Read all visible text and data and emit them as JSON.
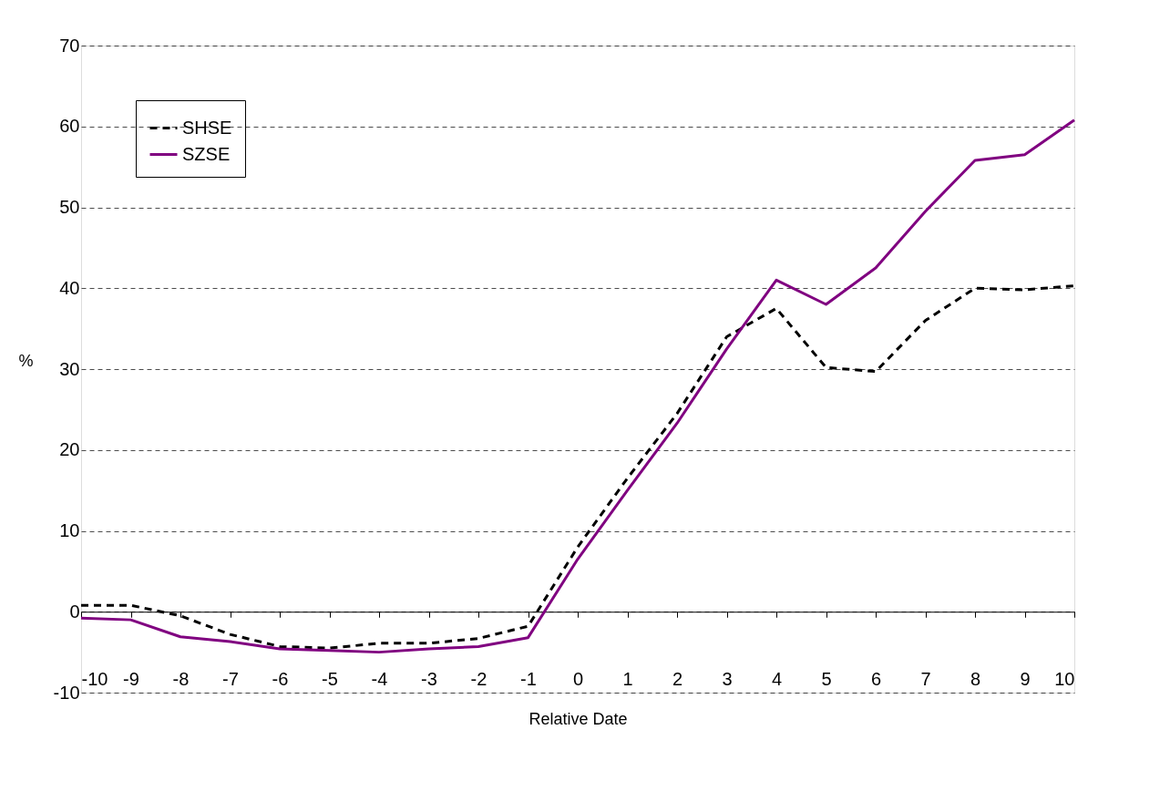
{
  "chart_data": {
    "type": "line",
    "xlabel": "Relative Date",
    "ylabel": "%",
    "x": [
      -10,
      -9,
      -8,
      -7,
      -6,
      -5,
      -4,
      -3,
      -2,
      -1,
      0,
      1,
      2,
      3,
      4,
      5,
      6,
      7,
      8,
      9,
      10
    ],
    "series": [
      {
        "name": "SHSE",
        "color": "#000000",
        "line_style": "dashed",
        "values": [
          0.8,
          0.8,
          -0.5,
          -2.8,
          -4.3,
          -4.5,
          -3.9,
          -3.9,
          -3.3,
          -1.8,
          8,
          16.5,
          24.5,
          34,
          37.5,
          30.2,
          29.7,
          36,
          40,
          39.8,
          40.3
        ]
      },
      {
        "name": "SZSE",
        "color": "#800080",
        "line_style": "solid",
        "values": [
          -0.8,
          -1,
          -3.1,
          -3.7,
          -4.6,
          -4.8,
          -5,
          -4.6,
          -4.3,
          -3.2,
          6.5,
          15,
          23.3,
          32.5,
          41,
          38,
          42.5,
          49.5,
          55.8,
          56.5,
          60.8
        ]
      }
    ],
    "xlim": [
      -10,
      10
    ],
    "xticks": [
      -10,
      -9,
      -8,
      -7,
      -6,
      -5,
      -4,
      -3,
      -2,
      -1,
      0,
      1,
      2,
      3,
      4,
      5,
      6,
      7,
      8,
      9,
      10
    ],
    "ylim": [
      -10,
      70
    ],
    "yticks": [
      -10,
      0,
      10,
      20,
      30,
      40,
      50,
      60,
      70
    ],
    "grid": "y",
    "legend": "top left"
  }
}
